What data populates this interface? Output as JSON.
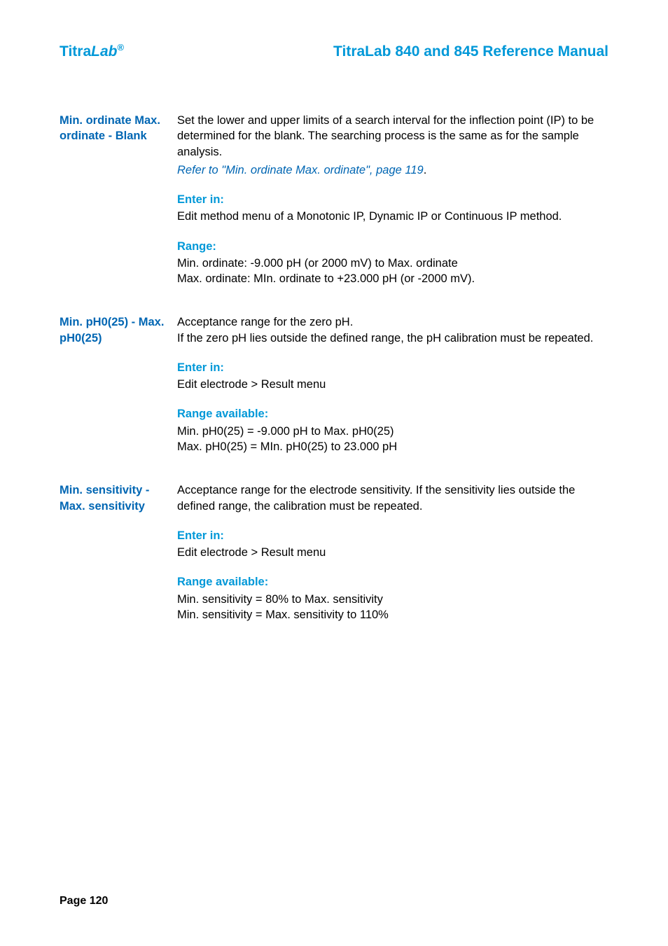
{
  "header": {
    "brand_titra": "Titra",
    "brand_lab": "Lab",
    "brand_reg": "®",
    "manual_title": "TitraLab 840 and 845 Reference Manual"
  },
  "sections": [
    {
      "label": "Min. ordinate Max. ordinate - Blank",
      "body": "Set the lower and upper limits of a search interval for the inflection point (IP) to be determined for the blank. The searching process is the same as for the sample analysis.",
      "link": "Refer to \"Min. ordinate Max. ordinate\", page 119",
      "link_suffix": ".",
      "subsections": [
        {
          "heading": "Enter in:",
          "text": "Edit method menu of a Monotonic IP, Dynamic IP or Continuous IP method."
        },
        {
          "heading": "Range:",
          "text": "Min. ordinate: -9.000 pH (or 2000 mV) to Max. ordinate\nMax. ordinate: MIn. ordinate to +23.000 pH (or -2000 mV)."
        }
      ]
    },
    {
      "label": "Min. pH0(25) - Max. pH0(25)",
      "body": "Acceptance range for the zero pH.\nIf the zero pH lies outside the defined range, the pH calibration must be repeated.",
      "subsections": [
        {
          "heading": "Enter in:",
          "text": "Edit electrode > Result menu"
        },
        {
          "heading": "Range available:",
          "text": "Min. pH0(25) = -9.000 pH to Max. pH0(25)\nMax. pH0(25) = MIn. pH0(25) to 23.000 pH"
        }
      ]
    },
    {
      "label": "Min. sensitivity - Max. sensitivity",
      "body": "Acceptance range for the electrode sensitivity. If the sensitivity lies outside the defined range, the calibration must be repeated.",
      "subsections": [
        {
          "heading": "Enter in:",
          "text": "Edit electrode > Result menu"
        },
        {
          "heading": "Range available:",
          "text": "Min. sensitivity = 80% to Max. sensitivity\nMin. sensitivity = Max. sensitivity to 110%"
        }
      ]
    }
  ],
  "footer": {
    "page_label": "Page 120"
  },
  "colors": {
    "cyan": "#0098d8",
    "blue": "#0066b3",
    "text": "#000000",
    "background": "#ffffff"
  },
  "typography": {
    "body_fontsize": 16.5,
    "header_fontsize": 21,
    "footer_fontsize": 16
  }
}
